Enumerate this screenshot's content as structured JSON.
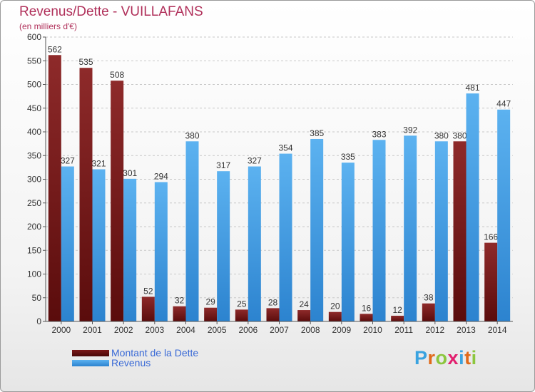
{
  "chart_data": {
    "type": "bar",
    "title": "Revenus/Dette - VUILLAFANS",
    "subtitle": "(en milliers d'€)",
    "categories": [
      "2000",
      "2001",
      "2002",
      "2003",
      "2004",
      "2005",
      "2006",
      "2007",
      "2008",
      "2009",
      "2010",
      "2011",
      "2012",
      "2013",
      "2014"
    ],
    "series": [
      {
        "name": "Montant de la Dette",
        "color": "#7a1818",
        "values": [
          562,
          535,
          508,
          52,
          32,
          29,
          25,
          28,
          24,
          20,
          16,
          12,
          38,
          380,
          166
        ]
      },
      {
        "name": "Revenus",
        "color": "#3d9ae8",
        "values": [
          327,
          321,
          301,
          294,
          380,
          317,
          327,
          354,
          385,
          335,
          383,
          392,
          380,
          481,
          447
        ]
      }
    ],
    "ylim": [
      0,
      600
    ],
    "yticks": [
      0,
      50,
      100,
      150,
      200,
      250,
      300,
      350,
      400,
      450,
      500,
      550,
      600
    ],
    "grid": true,
    "legend_position": "bottom-left"
  },
  "logo": {
    "text": "Proxiti",
    "colors": [
      "#3aa3e0",
      "#e06a1a",
      "#8cc63e",
      "#e21f6e",
      "#3aa3e0",
      "#e06a1a",
      "#8cc63e"
    ]
  }
}
